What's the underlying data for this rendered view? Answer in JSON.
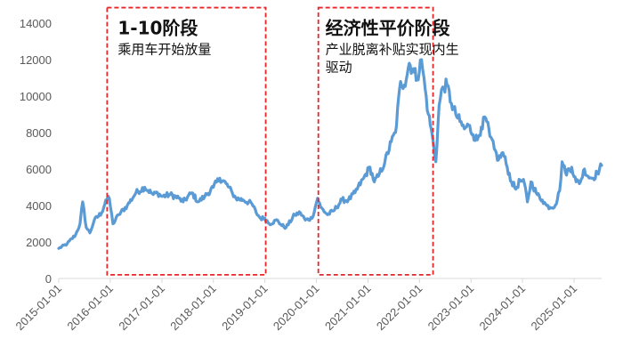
{
  "chart_data": {
    "type": "line",
    "title": "",
    "xlabel": "",
    "ylabel": "",
    "ylim": [
      0,
      14000
    ],
    "yticks": [
      0,
      2000,
      4000,
      6000,
      8000,
      10000,
      12000,
      14000
    ],
    "ytick_labels": [
      "0",
      "2000",
      "4000",
      "6000",
      "8000",
      "10000",
      "12000",
      "14000"
    ],
    "xlim": [
      "2015-01-01",
      "2025-07-15"
    ],
    "xticks": [
      "2015-01-01",
      "2016-01-01",
      "2017-01-01",
      "2018-01-01",
      "2019-01-01",
      "2020-01-01",
      "2021-01-01",
      "2022-01-01",
      "2023-01-01",
      "2024-01-01",
      "2025-01-01"
    ],
    "grid": "none",
    "legend": "none",
    "line_color": "#5B9BD5",
    "annotation_color": "#E8262A",
    "series": [
      {
        "x": [
          "2015-01-01",
          "2015-03-01",
          "2015-05-01",
          "2015-06-01",
          "2015-06-20",
          "2015-07-15",
          "2015-08-10",
          "2015-09-10",
          "2015-11-01",
          "2015-12-01",
          "2015-12-25",
          "2016-01-20",
          "2016-03-01",
          "2016-05-01",
          "2016-07-01",
          "2016-09-01",
          "2016-11-01",
          "2016-12-01",
          "2017-01-01",
          "2017-03-01",
          "2017-05-01",
          "2017-06-01",
          "2017-08-01",
          "2017-09-15",
          "2017-11-01",
          "2018-01-01",
          "2018-02-15",
          "2018-04-01",
          "2018-05-15",
          "2018-06-10",
          "2018-08-01",
          "2018-10-01",
          "2018-11-01",
          "2018-12-01",
          "2019-01-01",
          "2019-02-01",
          "2019-04-01",
          "2019-05-01",
          "2019-06-01",
          "2019-08-01",
          "2019-09-10",
          "2019-10-15",
          "2019-12-01",
          "2020-01-10",
          "2020-02-01",
          "2020-03-20",
          "2020-05-01",
          "2020-07-01",
          "2020-08-15",
          "2020-10-01",
          "2020-12-01",
          "2021-01-15",
          "2021-02-15",
          "2021-03-15",
          "2021-05-01",
          "2021-06-15",
          "2021-07-15",
          "2021-08-20",
          "2021-09-15",
          "2021-10-20",
          "2021-11-25",
          "2021-12-15",
          "2022-01-15",
          "2022-02-10",
          "2022-03-05",
          "2022-03-25",
          "2022-04-27",
          "2022-05-20",
          "2022-06-15",
          "2022-07-15",
          "2022-08-15",
          "2022-09-15",
          "2022-10-15",
          "2022-11-15",
          "2022-12-15",
          "2023-01-15",
          "2023-02-15",
          "2023-03-15",
          "2023-04-15",
          "2023-05-15",
          "2023-06-15",
          "2023-07-15",
          "2023-08-15",
          "2023-09-15",
          "2023-10-15",
          "2023-11-15",
          "2023-12-15",
          "2024-01-15",
          "2024-02-05",
          "2024-03-01",
          "2024-04-15",
          "2024-05-20",
          "2024-06-20",
          "2024-07-15",
          "2024-08-20",
          "2024-09-20",
          "2024-10-08",
          "2024-11-01",
          "2024-12-15",
          "2025-01-15",
          "2025-02-15",
          "2025-03-15",
          "2025-04-10",
          "2025-05-15",
          "2025-06-15",
          "2025-07-15"
        ],
        "y": [
          1650,
          1900,
          2400,
          3000,
          4200,
          2800,
          2500,
          3200,
          3600,
          4300,
          4400,
          3000,
          3500,
          4000,
          4700,
          5000,
          4600,
          4700,
          4500,
          4600,
          4400,
          4200,
          4700,
          4200,
          4500,
          5000,
          5500,
          5200,
          4700,
          4400,
          4300,
          4100,
          3600,
          3300,
          3300,
          3000,
          3200,
          2900,
          2800,
          3500,
          3600,
          3200,
          3300,
          4400,
          3900,
          3500,
          3700,
          4300,
          4300,
          4700,
          5500,
          6100,
          5300,
          5600,
          6400,
          7500,
          8000,
          10800,
          10600,
          11800,
          11300,
          11000,
          12000,
          10400,
          9000,
          8200,
          6400,
          9500,
          10500,
          10600,
          9600,
          9000,
          8600,
          8200,
          8400,
          7900,
          7600,
          8300,
          8800,
          7800,
          7100,
          6500,
          6900,
          6100,
          5300,
          4900,
          5400,
          5200,
          4200,
          5300,
          4600,
          4300,
          4000,
          3900,
          4000,
          4800,
          6400,
          5800,
          6100,
          5300,
          5300,
          6000,
          5600,
          5500,
          5800,
          6200
        ]
      }
    ],
    "annotations": [
      {
        "start": "2015-12-10",
        "end": "2019-01-07",
        "ymin": 200,
        "ymax": 14850,
        "title": "1-10阶段",
        "subtitle": "乘用车开始放量"
      },
      {
        "start": "2020-01-15",
        "end": "2022-04-07",
        "ymin": 200,
        "ymax": 14850,
        "title": "经济性平价阶段",
        "subtitle": "产业脱离补贴实现内生驱动"
      }
    ]
  }
}
